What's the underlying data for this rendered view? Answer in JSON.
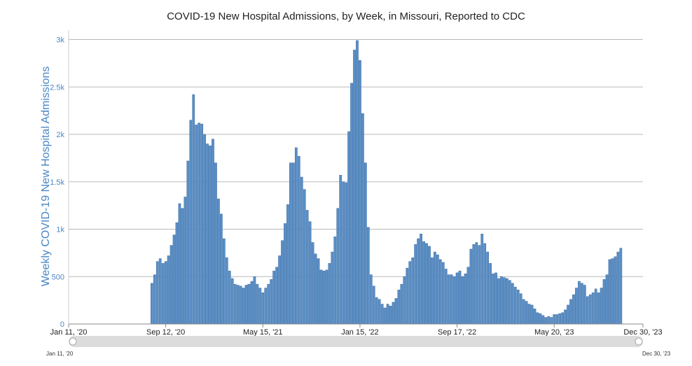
{
  "colors": {
    "bar": "#5b8fc6",
    "bar_stroke": "#3e6fa5",
    "ylabel": "#4a86c5",
    "grid": "#b9b9b9",
    "navigator_track": "#dcdcdc"
  },
  "navigator": {
    "start_label": "Jan 11, '20",
    "end_label": "Dec 30, '23"
  },
  "chart_data": {
    "type": "bar",
    "title": "COVID-19 New Hospital Admissions, by Week, in Missouri, Reported to CDC",
    "xlabel": "",
    "ylabel": "Weekly COVID-19 New Hospital Admissions",
    "ylim": [
      0,
      3100
    ],
    "grid": true,
    "legend": "none",
    "x_range": [
      "2020-01-11",
      "2023-12-30"
    ],
    "x_ticks": [
      {
        "date": "2020-01-11",
        "label": "Jan 11, '20"
      },
      {
        "date": "2020-09-12",
        "label": "Sep 12, '20"
      },
      {
        "date": "2021-05-15",
        "label": "May 15, '21"
      },
      {
        "date": "2022-01-15",
        "label": "Jan 15, '22"
      },
      {
        "date": "2022-09-17",
        "label": "Sep 17, '22"
      },
      {
        "date": "2023-05-20",
        "label": "May 20, '23"
      },
      {
        "date": "2023-12-30",
        "label": "Dec 30, '23"
      }
    ],
    "y_ticks": [
      {
        "value": 0,
        "label": "0"
      },
      {
        "value": 500,
        "label": "500"
      },
      {
        "value": 1000,
        "label": "1k"
      },
      {
        "value": 1500,
        "label": "1.5k"
      },
      {
        "value": 2000,
        "label": "2k"
      },
      {
        "value": 2500,
        "label": "2.5k"
      },
      {
        "value": 3000,
        "label": "3k"
      }
    ],
    "first_week": "2020-08-08",
    "week_step_days": 7,
    "values": [
      430,
      520,
      660,
      690,
      640,
      660,
      720,
      830,
      940,
      1070,
      1270,
      1220,
      1340,
      1720,
      2150,
      2420,
      2100,
      2120,
      2110,
      2000,
      1900,
      1880,
      1950,
      1700,
      1320,
      1160,
      900,
      700,
      560,
      480,
      420,
      410,
      400,
      380,
      410,
      420,
      450,
      500,
      420,
      380,
      330,
      380,
      420,
      470,
      560,
      600,
      720,
      880,
      1060,
      1260,
      1700,
      1700,
      1860,
      1770,
      1550,
      1420,
      1200,
      1080,
      860,
      740,
      690,
      570,
      560,
      570,
      640,
      760,
      920,
      1220,
      1570,
      1500,
      1490,
      2030,
      2540,
      2890,
      2990,
      2780,
      2220,
      1700,
      1020,
      520,
      400,
      280,
      260,
      210,
      170,
      210,
      190,
      230,
      270,
      360,
      420,
      500,
      590,
      660,
      700,
      840,
      900,
      950,
      870,
      850,
      820,
      700,
      760,
      730,
      680,
      650,
      580,
      520,
      520,
      500,
      540,
      560,
      500,
      530,
      600,
      790,
      840,
      860,
      830,
      950,
      850,
      760,
      640,
      530,
      540,
      480,
      500,
      490,
      480,
      460,
      430,
      390,
      360,
      320,
      260,
      240,
      210,
      200,
      160,
      120,
      110,
      90,
      70,
      80,
      70,
      100,
      100,
      110,
      120,
      150,
      200,
      260,
      310,
      380,
      450,
      430,
      410,
      290,
      310,
      330,
      370,
      330,
      380,
      470,
      520,
      680,
      690,
      710,
      760,
      800
    ]
  }
}
